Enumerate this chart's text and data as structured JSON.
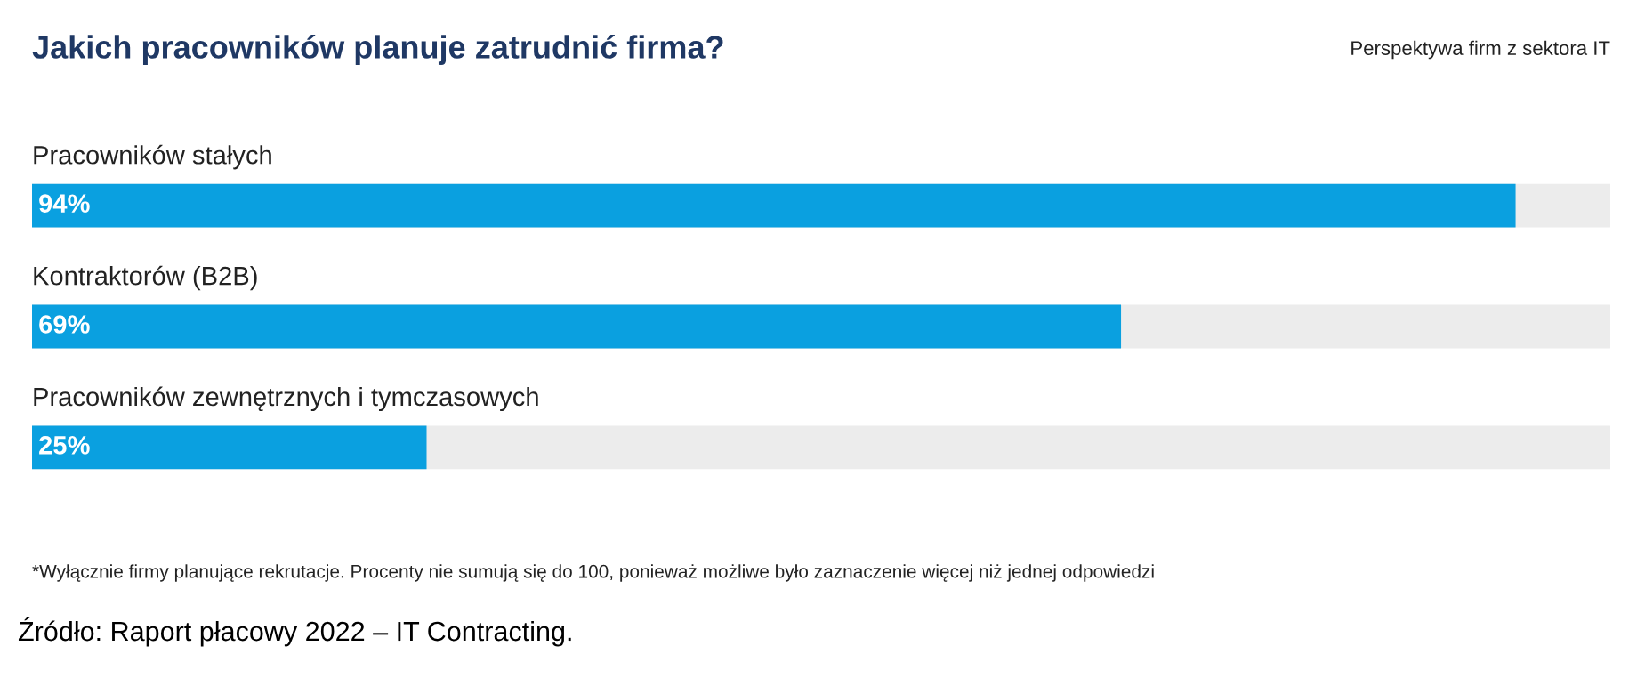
{
  "chart_data": {
    "type": "bar",
    "orientation": "horizontal",
    "title": "Jakich pracowników planuje zatrudnić firma?",
    "subtitle": "Perspektywa firm z sektora IT",
    "categories": [
      "Pracowników stałych",
      "Kontraktorów (B2B)",
      "Pracowników zewnętrznych i tymczasowych"
    ],
    "values": [
      94,
      69,
      25
    ],
    "value_labels": [
      "94%",
      "69%",
      "25%"
    ],
    "color": "#0aa0e0",
    "xlim": [
      0,
      100
    ],
    "annotations": [
      "*Wyłącznie firmy planujące rekrutacje. Procenty nie sumują się do 100, ponieważ możliwe było zaznaczenie więcej niż jednej odpowiedzi",
      "Źródło: Raport płacowy 2022 – IT Contracting."
    ]
  }
}
